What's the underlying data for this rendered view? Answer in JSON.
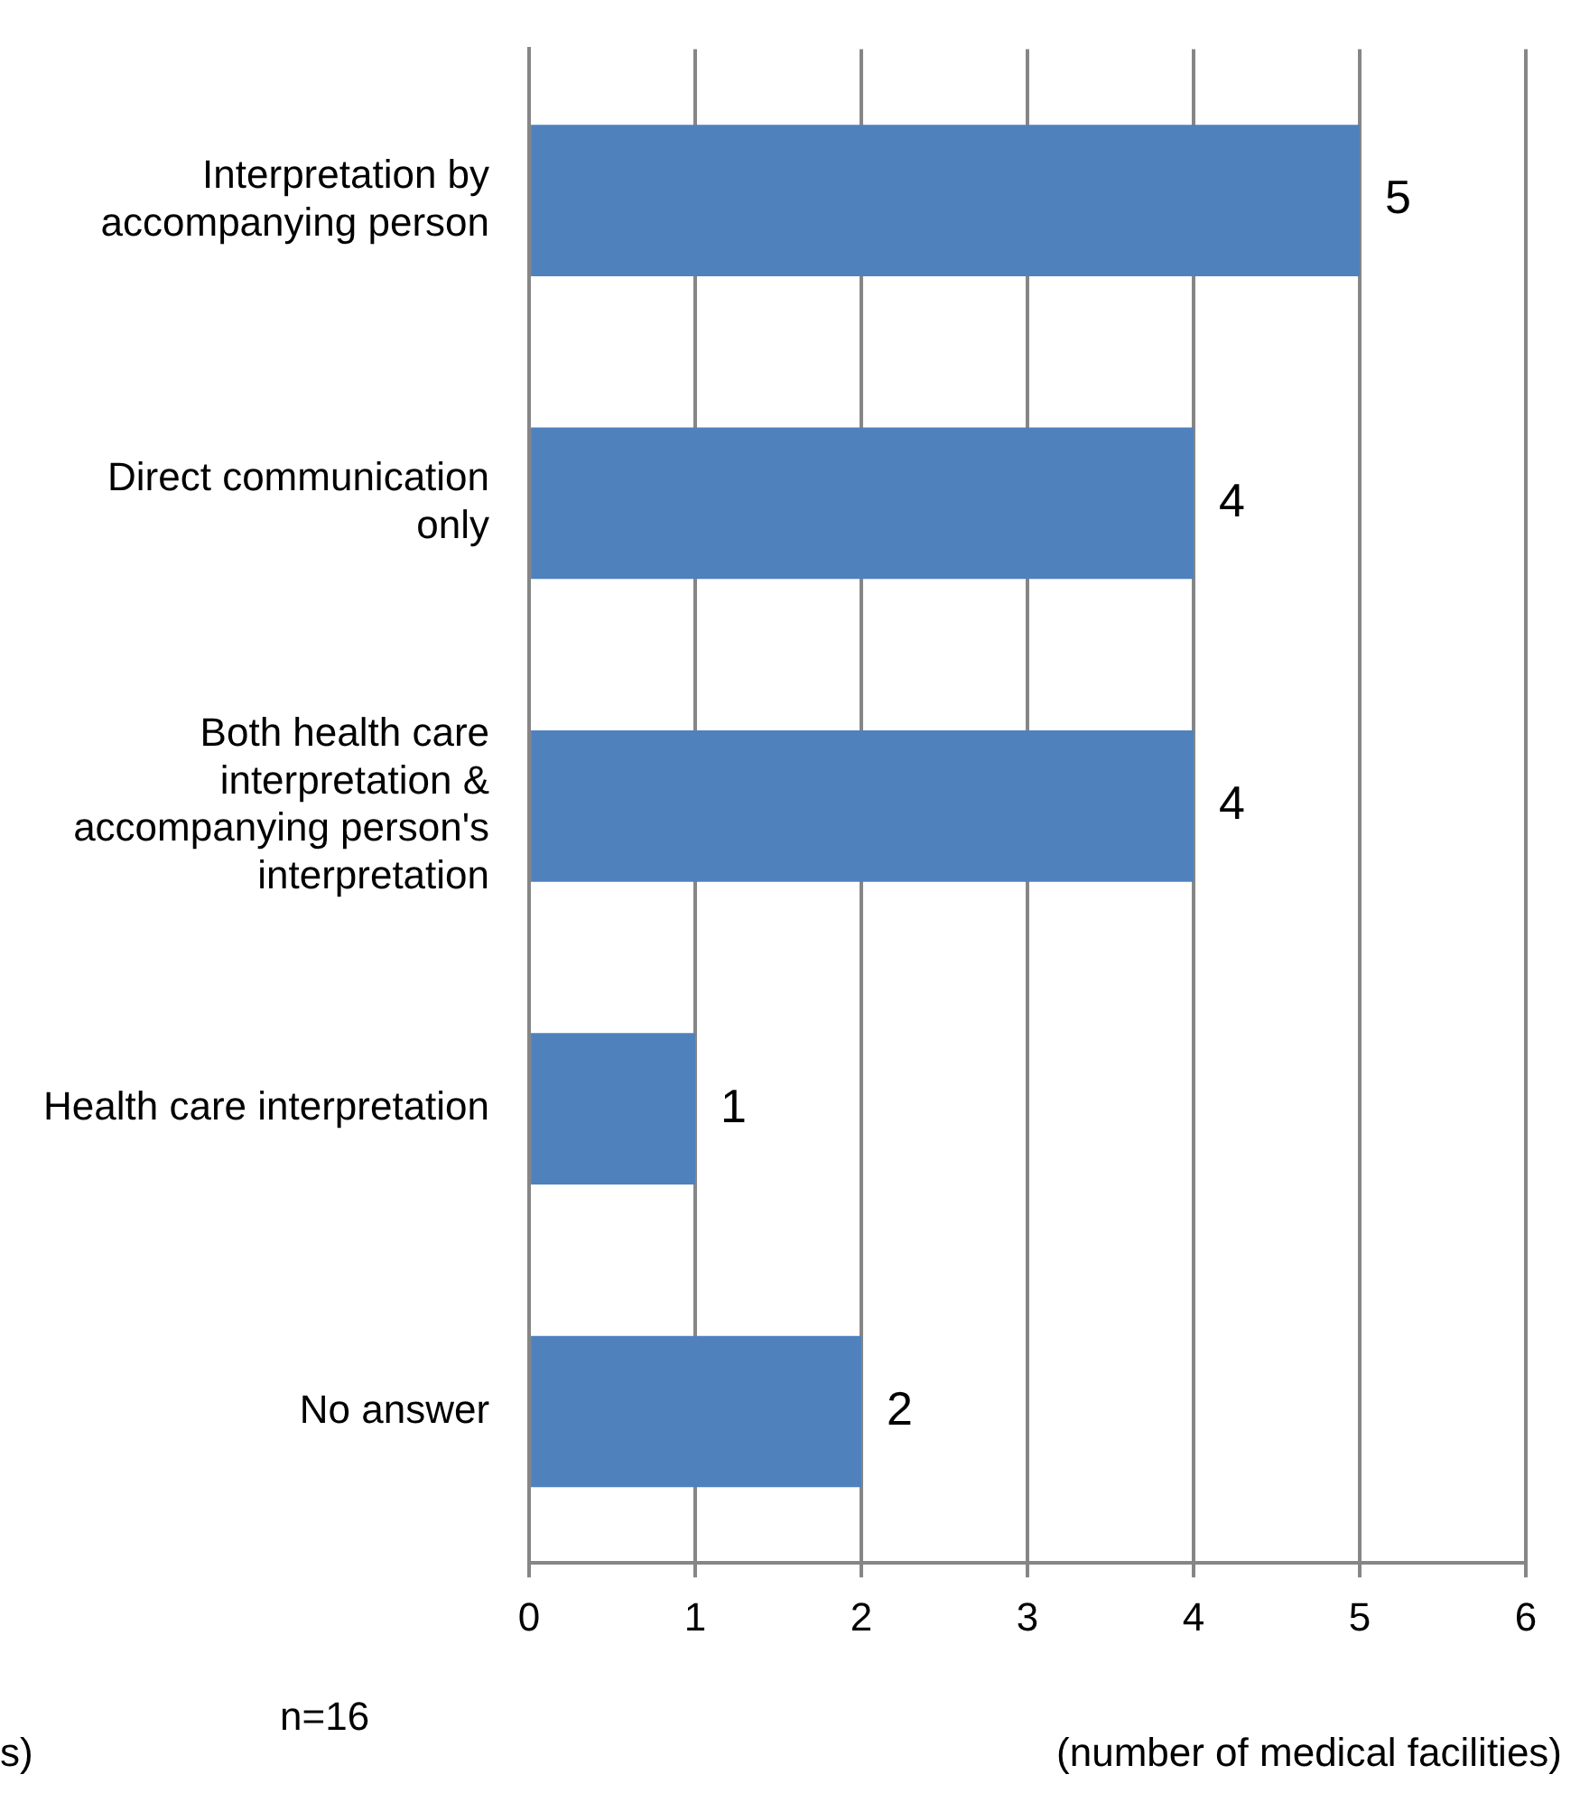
{
  "chart_data": {
    "type": "bar",
    "orientation": "horizontal",
    "categories": [
      "Interpretation by accompanying person",
      "Direct communication only",
      "Both health care interpretation & accompanying person's interpretation",
      "Health care interpretation",
      "No answer"
    ],
    "values": [
      5,
      4,
      4,
      1,
      2
    ],
    "color": "#4f81bd",
    "xlim": [
      0,
      6
    ],
    "xticks": [
      0,
      1,
      2,
      3,
      4,
      5,
      6
    ],
    "grid": "x",
    "legend": false,
    "data_labels": true,
    "annotations": [
      "s)",
      "n=16",
      "(number of medical facilities)"
    ]
  }
}
